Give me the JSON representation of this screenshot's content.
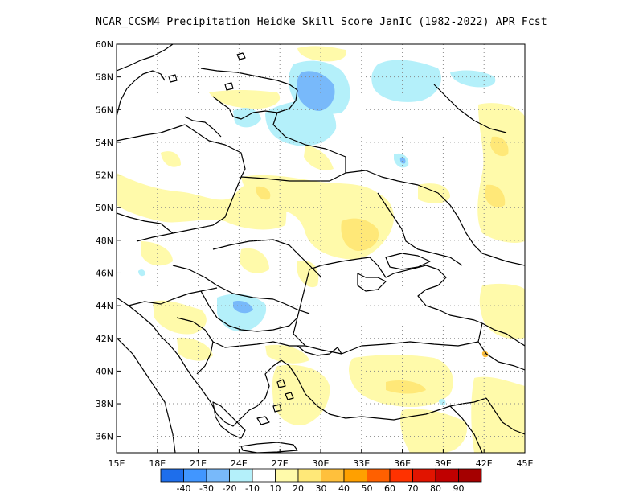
{
  "title": "NCAR_CCSM4  Precipitation Heidke Skill Score JanIC (1982-2022) APR Fcst",
  "map": {
    "lon_range": [
      15,
      45
    ],
    "lat_range": [
      35,
      60
    ],
    "x_ticks": [
      {
        "value": 15,
        "label": "15E"
      },
      {
        "value": 18,
        "label": "18E"
      },
      {
        "value": 21,
        "label": "21E"
      },
      {
        "value": 24,
        "label": "24E"
      },
      {
        "value": 27,
        "label": "27E"
      },
      {
        "value": 30,
        "label": "30E"
      },
      {
        "value": 33,
        "label": "33E"
      },
      {
        "value": 36,
        "label": "36E"
      },
      {
        "value": 39,
        "label": "39E"
      },
      {
        "value": 42,
        "label": "42E"
      },
      {
        "value": 45,
        "label": "45E"
      }
    ],
    "y_ticks": [
      {
        "value": 36,
        "label": "36N"
      },
      {
        "value": 38,
        "label": "38N"
      },
      {
        "value": 40,
        "label": "40N"
      },
      {
        "value": 42,
        "label": "42N"
      },
      {
        "value": 44,
        "label": "44N"
      },
      {
        "value": 46,
        "label": "46N"
      },
      {
        "value": 48,
        "label": "48N"
      },
      {
        "value": 50,
        "label": "50N"
      },
      {
        "value": 52,
        "label": "52N"
      },
      {
        "value": 54,
        "label": "54N"
      },
      {
        "value": 56,
        "label": "56N"
      },
      {
        "value": 58,
        "label": "58N"
      },
      {
        "value": 60,
        "label": "60N"
      }
    ],
    "grid": "dotted",
    "colors": {
      "neg_40": "#1e6eeb",
      "neg_30": "#4196ff",
      "neg_20": "#78b9fa",
      "neg_10": "#b4f0fa",
      "neutral": "#ffffff",
      "pos_10": "#fffaaa",
      "pos_20": "#ffe878",
      "pos_30": "#ffc03c",
      "pos_40": "#ffa000",
      "pos_50": "#ff6000",
      "pos_60": "#ff3200",
      "pos_70": "#e11400",
      "pos_80": "#c00000",
      "pos_90": "#a50000"
    }
  },
  "colorbar": {
    "labels": [
      "-40",
      "-30",
      "-20",
      "-10",
      "10",
      "20",
      "30",
      "40",
      "50",
      "60",
      "70",
      "80",
      "90"
    ],
    "colors": [
      "#1e6eeb",
      "#4196ff",
      "#78b9fa",
      "#b4f0fa",
      "#ffffff",
      "#fffaaa",
      "#ffe878",
      "#ffc03c",
      "#ffa000",
      "#ff6000",
      "#ff3200",
      "#e11400",
      "#c00000",
      "#a50000"
    ]
  }
}
